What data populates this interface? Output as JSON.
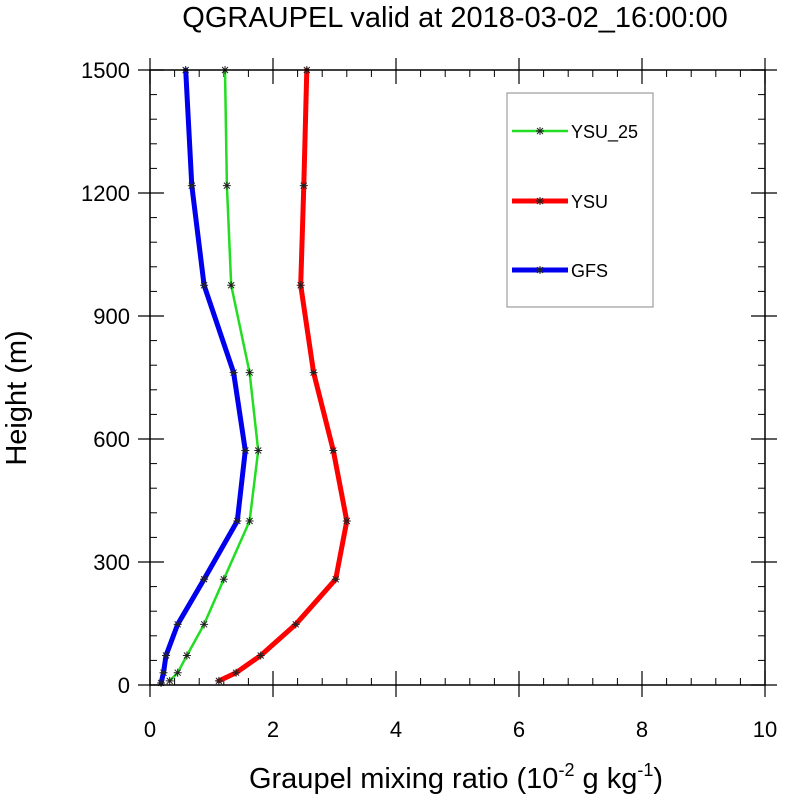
{
  "chart_data": {
    "type": "line",
    "title": "QGRAUPEL valid at 2018-03-02_16:00:00",
    "xlabel_main": "Graupel mixing ratio (10",
    "xlabel_exp1": "-2",
    "xlabel_mid": " g kg",
    "xlabel_exp2": "-1",
    "xlabel_end": ")",
    "ylabel": "Height (m)",
    "xlim": [
      0,
      10
    ],
    "ylim": [
      0,
      1500
    ],
    "x_ticks": [
      0,
      2,
      4,
      6,
      8,
      10
    ],
    "y_ticks": [
      0,
      300,
      600,
      900,
      1200,
      1500
    ],
    "x_tick_labels": [
      "0",
      "2",
      "4",
      "6",
      "8",
      "10"
    ],
    "y_tick_labels": [
      "0",
      "300",
      "600",
      "900",
      "1200",
      "1500"
    ],
    "grid": false,
    "legend_position": "top-right",
    "series": [
      {
        "name": "YSU_25",
        "color": "#22dd22",
        "width": 2.5,
        "points": [
          [
            0.32,
            10
          ],
          [
            0.45,
            30
          ],
          [
            0.6,
            72
          ],
          [
            0.88,
            148
          ],
          [
            1.2,
            258
          ],
          [
            1.62,
            400
          ],
          [
            1.76,
            572
          ],
          [
            1.62,
            762
          ],
          [
            1.32,
            975
          ],
          [
            1.25,
            1218
          ],
          [
            1.22,
            1500
          ]
        ]
      },
      {
        "name": "YSU",
        "color": "#ff0000",
        "width": 5,
        "points": [
          [
            1.12,
            10
          ],
          [
            1.4,
            30
          ],
          [
            1.8,
            72
          ],
          [
            2.37,
            148
          ],
          [
            3.02,
            258
          ],
          [
            3.2,
            400
          ],
          [
            2.98,
            572
          ],
          [
            2.66,
            762
          ],
          [
            2.45,
            975
          ],
          [
            2.5,
            1218
          ],
          [
            2.55,
            1500
          ]
        ]
      },
      {
        "name": "GFS",
        "color": "#0000ee",
        "width": 5,
        "points": [
          [
            0.18,
            5
          ],
          [
            0.22,
            30
          ],
          [
            0.26,
            72
          ],
          [
            0.45,
            148
          ],
          [
            0.88,
            258
          ],
          [
            1.42,
            400
          ],
          [
            1.55,
            572
          ],
          [
            1.36,
            762
          ],
          [
            0.88,
            975
          ],
          [
            0.68,
            1218
          ],
          [
            0.58,
            1500
          ]
        ]
      }
    ]
  }
}
